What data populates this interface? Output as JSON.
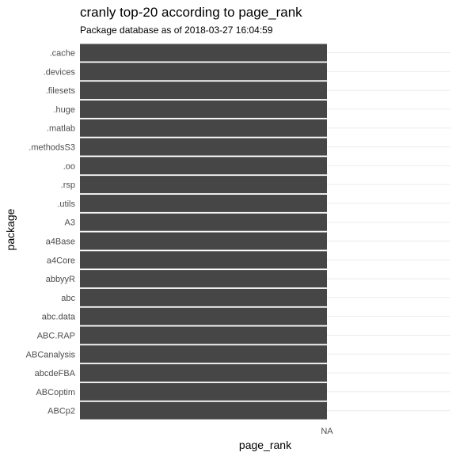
{
  "chart_data": {
    "type": "bar",
    "orientation": "horizontal",
    "title": "cranly top-20 according to page_rank",
    "subtitle": "Package database as of 2018-03-27 16:04:59",
    "xlabel": "page_rank",
    "ylabel": "package",
    "x_tick_labels": [
      "NA"
    ],
    "categories": [
      ".cache",
      ".devices",
      ".filesets",
      ".huge",
      ".matlab",
      ".methodsS3",
      ".oo",
      ".rsp",
      ".utils",
      "A3",
      "a4Base",
      "a4Core",
      "abbyyR",
      "abc",
      "abc.data",
      "ABC.RAP",
      "ABCanalysis",
      "abcdeFBA",
      "ABCoptim",
      "ABCp2"
    ],
    "values": [
      null,
      null,
      null,
      null,
      null,
      null,
      null,
      null,
      null,
      null,
      null,
      null,
      null,
      null,
      null,
      null,
      null,
      null,
      null,
      null
    ],
    "bar_color": "#464646",
    "grid": true,
    "legend": "none"
  }
}
